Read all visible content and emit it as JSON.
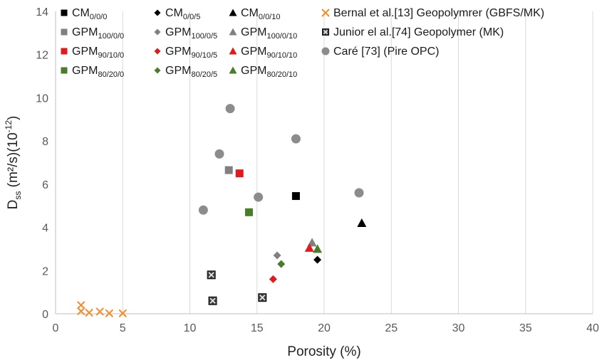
{
  "chart_data": {
    "type": "scatter",
    "xlabel": "Porosity (%)",
    "ylabel": {
      "base": "D",
      "sub": "ss",
      "rest": " (m²/s)(10",
      "sup": "-12",
      "tail": ")"
    },
    "xlim": [
      0,
      40
    ],
    "ylim": [
      0,
      14
    ],
    "x_ticks": [
      0,
      5,
      10,
      15,
      20,
      25,
      30,
      35,
      40
    ],
    "y_ticks": [
      0,
      2,
      4,
      6,
      8,
      10,
      12,
      14
    ],
    "grid": "vertical",
    "legend_position": "top",
    "series": [
      {
        "name": "CM0/0/0",
        "label": {
          "base": "CM",
          "sub": "0/0/0"
        },
        "marker": "square",
        "color": "#000000",
        "points": [
          [
            17.9,
            5.45
          ]
        ]
      },
      {
        "name": "GPM100/0/0",
        "label": {
          "base": "GPM",
          "sub": "100/0/0"
        },
        "marker": "square",
        "color": "#808080",
        "points": [
          [
            12.9,
            6.65
          ]
        ]
      },
      {
        "name": "GPM90/10/0",
        "label": {
          "base": "GPM",
          "sub": "90/10/0"
        },
        "marker": "square",
        "color": "#e31a1c",
        "points": [
          [
            13.7,
            6.5
          ]
        ]
      },
      {
        "name": "GPM80/20/0",
        "label": {
          "base": "GPM",
          "sub": "80/20/0"
        },
        "marker": "square",
        "color": "#4a7d2a",
        "points": [
          [
            14.4,
            4.7
          ]
        ]
      },
      {
        "name": "CM0/0/5",
        "label": {
          "base": "CM",
          "sub": "0/0/5"
        },
        "marker": "diamond",
        "color": "#000000",
        "points": [
          [
            19.5,
            2.5
          ]
        ]
      },
      {
        "name": "GPM100/0/5",
        "label": {
          "base": "GPM",
          "sub": "100/0/5"
        },
        "marker": "diamond",
        "color": "#808080",
        "points": [
          [
            16.5,
            2.7
          ]
        ]
      },
      {
        "name": "GPM90/10/5",
        "label": {
          "base": "GPM",
          "sub": "90/10/5"
        },
        "marker": "diamond",
        "color": "#e31a1c",
        "points": [
          [
            16.2,
            1.6
          ]
        ]
      },
      {
        "name": "GPM80/20/5",
        "label": {
          "base": "GPM",
          "sub": "80/20/5"
        },
        "marker": "diamond",
        "color": "#4a7d2a",
        "points": [
          [
            16.8,
            2.3
          ]
        ]
      },
      {
        "name": "CM0/0/10",
        "label": {
          "base": "CM",
          "sub": "0/0/10"
        },
        "marker": "triangle",
        "color": "#000000",
        "points": [
          [
            22.8,
            4.2
          ]
        ]
      },
      {
        "name": "GPM100/0/10",
        "label": {
          "base": "GPM",
          "sub": "100/0/10"
        },
        "marker": "triangle",
        "color": "#808080",
        "points": [
          [
            19.1,
            3.3
          ]
        ]
      },
      {
        "name": "GPM90/10/10",
        "label": {
          "base": "GPM",
          "sub": "90/10/10"
        },
        "marker": "triangle",
        "color": "#e31a1c",
        "points": [
          [
            18.9,
            3.05
          ]
        ]
      },
      {
        "name": "GPM80/20/10",
        "label": {
          "base": "GPM",
          "sub": "80/20/10"
        },
        "marker": "triangle",
        "color": "#4a7d2a",
        "points": [
          [
            19.5,
            3.0
          ]
        ]
      },
      {
        "name": "Bernal et al.[13] Geopolymrer (GBFS/MK)",
        "label": {
          "base": "Bernal et al.[13] Geopolymrer (GBFS/MK)",
          "sub": ""
        },
        "marker": "x",
        "color": "#f28e2b",
        "points": [
          [
            1.9,
            0.4
          ],
          [
            1.9,
            0.12
          ],
          [
            2.5,
            0.05
          ],
          [
            3.3,
            0.1
          ],
          [
            4.0,
            0.02
          ],
          [
            5.0,
            0.02
          ]
        ]
      },
      {
        "name": "Junior el al.[74] Geopolymer (MK)",
        "label": {
          "base": "Junior el al.[74] Geopolymer (MK)",
          "sub": ""
        },
        "marker": "xsquare",
        "color": "#3c3c3c",
        "points": [
          [
            11.6,
            1.8
          ],
          [
            11.7,
            0.6
          ],
          [
            15.4,
            0.75
          ]
        ]
      },
      {
        "name": "Caré [73] (Pire OPC)",
        "label": {
          "base": "Caré [73]  (Pire OPC)",
          "sub": ""
        },
        "marker": "circle",
        "color": "#8c8c8c",
        "points": [
          [
            13.0,
            9.5
          ],
          [
            12.2,
            7.4
          ],
          [
            17.9,
            8.1
          ],
          [
            15.1,
            5.4
          ],
          [
            11.0,
            4.8
          ],
          [
            22.6,
            5.6
          ]
        ]
      }
    ]
  }
}
